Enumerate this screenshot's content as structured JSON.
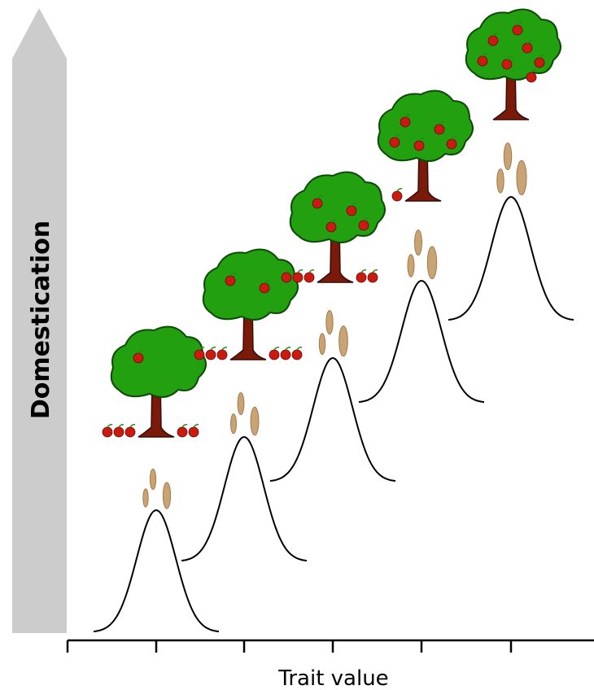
{
  "vertical_arrow": {
    "label": "Domestication"
  },
  "x_axis": {
    "label": "Trait value"
  }
}
